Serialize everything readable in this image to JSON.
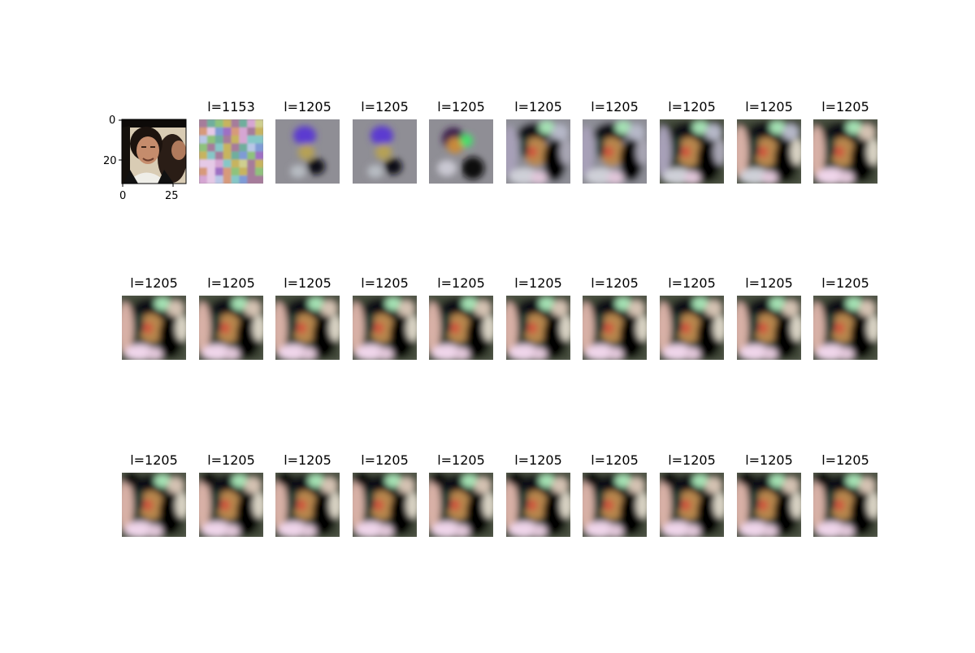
{
  "chart_data": {
    "type": "image_grid",
    "rows": 3,
    "cols": 10,
    "original": {
      "x_ticks": [
        "0",
        "25"
      ],
      "y_ticks": [
        "0",
        "20"
      ]
    },
    "titles": [
      "",
      "l=1153",
      "l=1205",
      "l=1205",
      "l=1205",
      "l=1205",
      "l=1205",
      "l=1205",
      "l=1205",
      "l=1205",
      "l=1205",
      "l=1205",
      "l=1205",
      "l=1205",
      "l=1205",
      "l=1205",
      "l=1205",
      "l=1205",
      "l=1205",
      "l=1205",
      "l=1205",
      "l=1205",
      "l=1205",
      "l=1205",
      "l=1205",
      "l=1205",
      "l=1205",
      "l=1205",
      "l=1205",
      "l=1205"
    ]
  }
}
